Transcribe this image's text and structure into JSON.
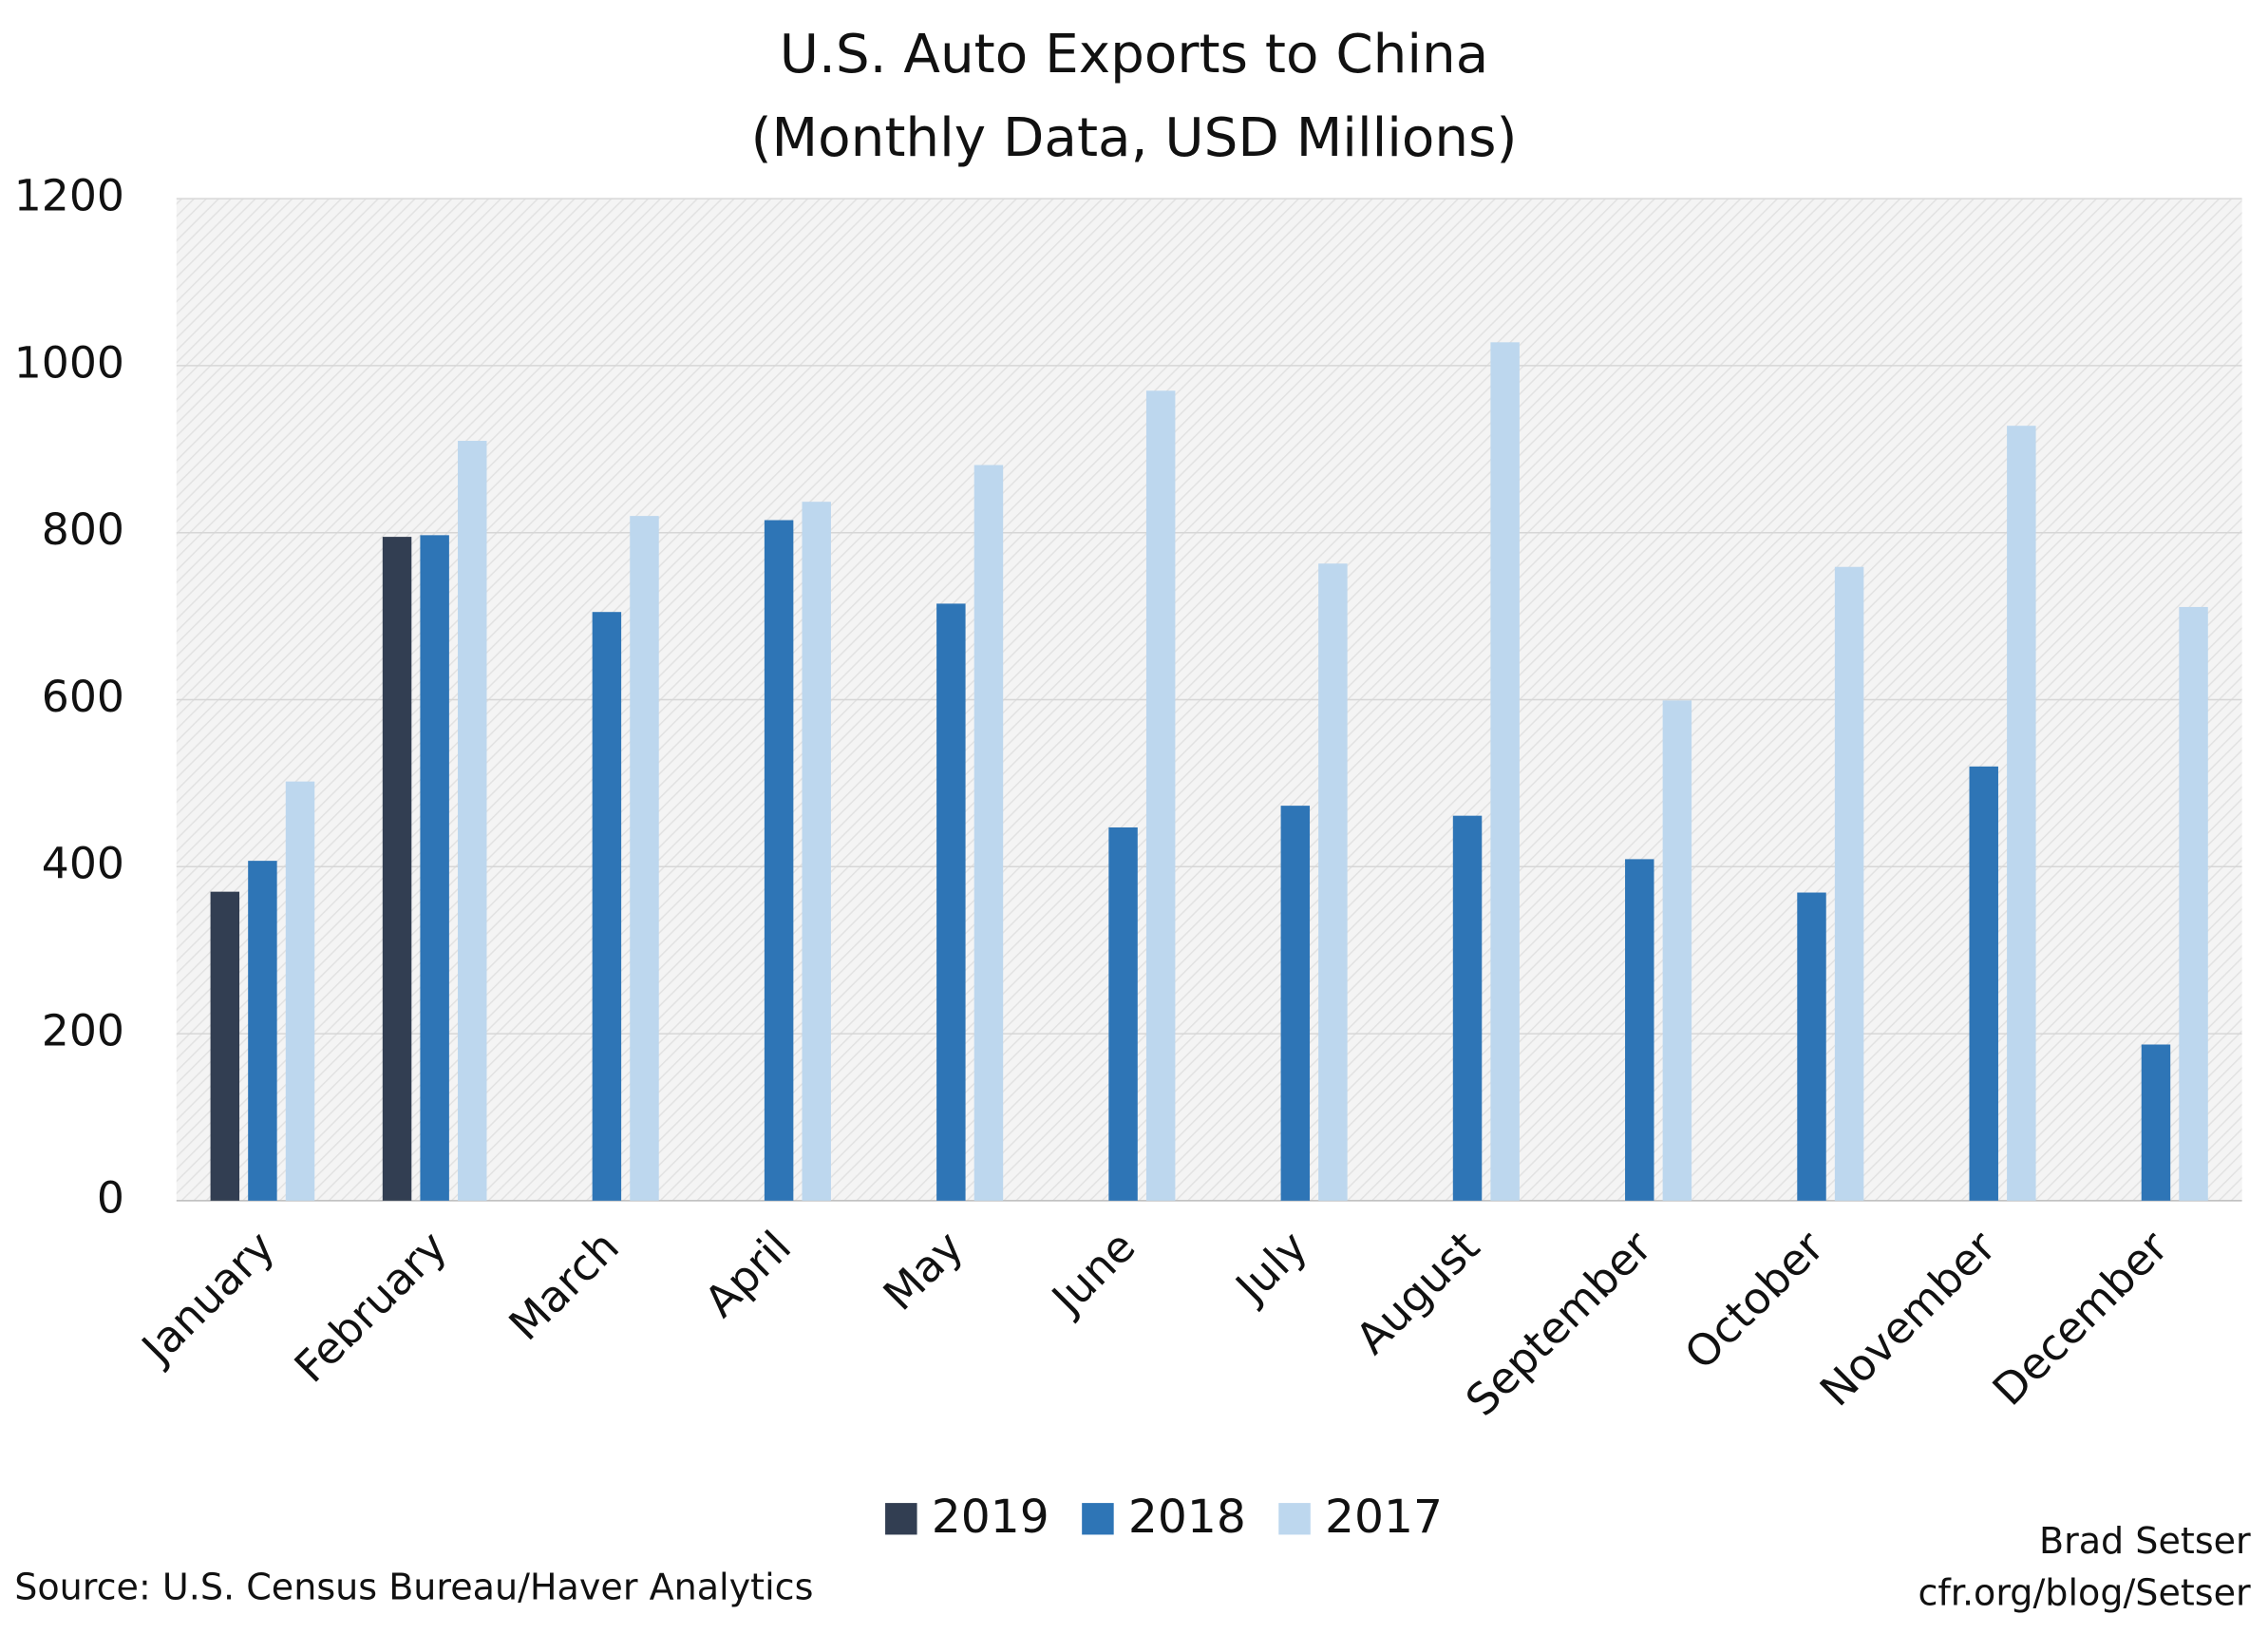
{
  "chart_data": {
    "type": "bar",
    "title": "U.S. Auto Exports to China",
    "subtitle": "(Monthly Data, USD Millions)",
    "categories": [
      "January",
      "February",
      "March",
      "April",
      "May",
      "June",
      "July",
      "August",
      "September",
      "October",
      "November",
      "December"
    ],
    "series": [
      {
        "name": "2019",
        "color": "#323e52",
        "values": [
          370,
          795,
          null,
          null,
          null,
          null,
          null,
          null,
          null,
          null,
          null,
          null
        ]
      },
      {
        "name": "2018",
        "color": "#2e75b6",
        "values": [
          407,
          797,
          705,
          815,
          715,
          447,
          473,
          461,
          409,
          369,
          520,
          187
        ]
      },
      {
        "name": "2017",
        "color": "#bdd7ee",
        "values": [
          502,
          910,
          820,
          837,
          881,
          970,
          763,
          1028,
          599,
          759,
          928,
          711
        ]
      }
    ],
    "ylim": [
      0,
      1200
    ],
    "yticks": [
      0,
      200,
      400,
      600,
      800,
      1000,
      1200
    ],
    "grid": true,
    "legend": "bottom",
    "source": "Source: U.S. Census Bureau/Haver Analytics",
    "credit": [
      "Brad Setser",
      "cfr.org/blog/Setser"
    ]
  }
}
